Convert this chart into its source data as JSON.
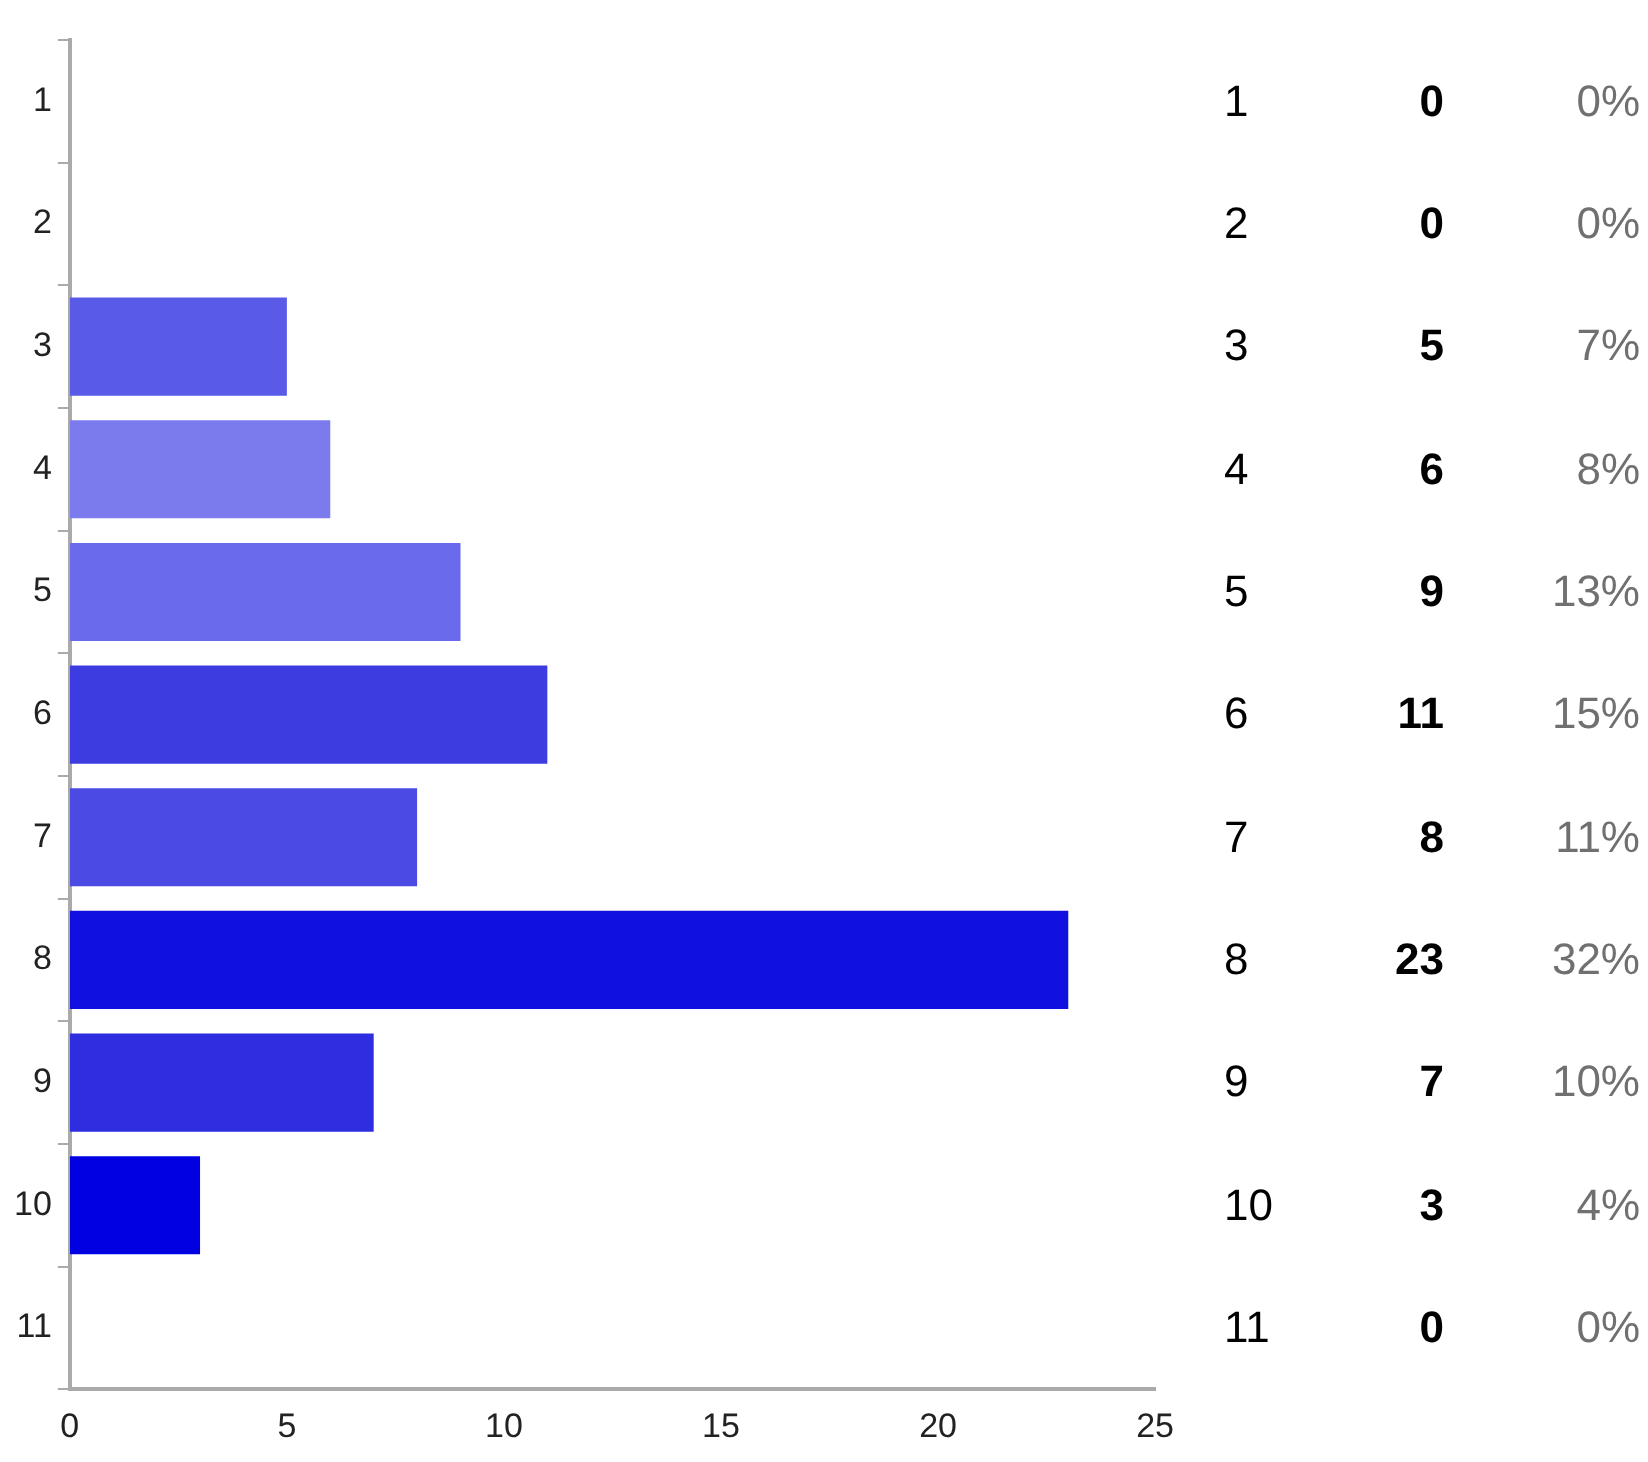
{
  "chart_data": {
    "type": "bar",
    "orientation": "horizontal",
    "categories": [
      "1",
      "2",
      "3",
      "4",
      "5",
      "6",
      "7",
      "8",
      "9",
      "10",
      "11"
    ],
    "values": [
      0,
      0,
      5,
      6,
      9,
      11,
      8,
      23,
      7,
      3,
      0
    ],
    "colors": [
      "#5a5ae8",
      "#5a5ae8",
      "#5a5ae8",
      "#7b7bee",
      "#6a6aec",
      "#3c3ce0",
      "#4b4be4",
      "#1010e0",
      "#2e2ee0",
      "#0000e0",
      "#5a5ae8"
    ],
    "xlim": [
      0,
      25
    ],
    "xticks": [
      0,
      5,
      10,
      15,
      20,
      25
    ],
    "grid": false,
    "legend": false,
    "data_labels": true,
    "annotations": [
      "0%",
      "0%",
      "7%",
      "8%",
      "13%",
      "15%",
      "11%",
      "32%",
      "10%",
      "4%",
      "0%"
    ]
  }
}
